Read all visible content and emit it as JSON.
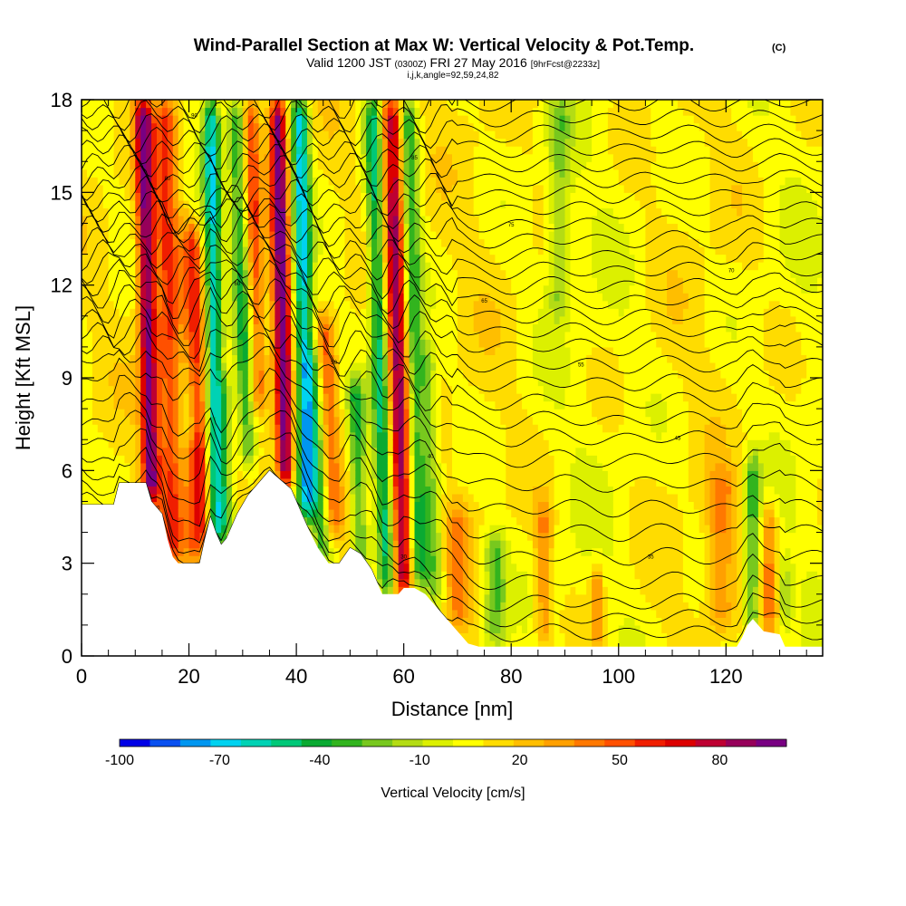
{
  "chart_data": {
    "type": "heatmap",
    "title": "Wind-Parallel Section at Max W: Vertical Velocity & Pot.Temp.",
    "title_mark": "(C)",
    "subtitle_prefix": "Valid 1200 JST",
    "subtitle_small1": "(0300Z)",
    "subtitle_main": "FRI 27 May 2016",
    "subtitle_small2": "[9hrFcst@2233z]",
    "subtitle_line2": "i,j,k,angle=92,59,24,82",
    "xlabel": "Distance [nm]",
    "ylabel": "Height [Kft MSL]",
    "xlim": [
      0,
      138
    ],
    "ylim": [
      0,
      18
    ],
    "xticks": [
      "0",
      "20",
      "40",
      "60",
      "80",
      "100",
      "120"
    ],
    "yticks": [
      "0",
      "3",
      "6",
      "9",
      "12",
      "15",
      "18"
    ],
    "colorbar": {
      "label": "Vertical Velocity [cm/s]",
      "tick_labels": [
        "-100",
        "-70",
        "-40",
        "-10",
        "20",
        "50",
        "80"
      ],
      "tick_values": [
        -100,
        -70,
        -40,
        -10,
        20,
        50,
        80
      ],
      "range": [
        -100,
        100
      ],
      "colors": [
        "#0000e6",
        "#0a50f0",
        "#0096f0",
        "#00d2f0",
        "#00d2b4",
        "#00c878",
        "#0aaa32",
        "#32b41e",
        "#78c81e",
        "#b4dc14",
        "#dcf000",
        "#ffff00",
        "#ffdc00",
        "#ffbe00",
        "#ffa000",
        "#ff7800",
        "#ff5000",
        "#f01e00",
        "#dc0000",
        "#be0032",
        "#96005a",
        "#780082"
      ]
    },
    "terrain": [
      [
        0,
        4.9
      ],
      [
        6,
        4.9
      ],
      [
        7,
        5.6
      ],
      [
        12,
        5.6
      ],
      [
        13,
        5.0
      ],
      [
        15,
        4.6
      ],
      [
        16,
        3.8
      ],
      [
        17,
        3.2
      ],
      [
        18,
        3.0
      ],
      [
        22,
        3.0
      ],
      [
        23,
        3.8
      ],
      [
        24,
        4.5
      ],
      [
        25,
        4.0
      ],
      [
        26,
        3.6
      ],
      [
        27,
        3.8
      ],
      [
        29,
        4.6
      ],
      [
        31,
        5.2
      ],
      [
        33,
        5.6
      ],
      [
        35,
        6.0
      ],
      [
        37,
        5.7
      ],
      [
        39,
        5.4
      ],
      [
        40,
        5.0
      ],
      [
        41,
        4.6
      ],
      [
        42,
        4.2
      ],
      [
        44,
        3.5
      ],
      [
        46,
        3.0
      ],
      [
        48,
        3.0
      ],
      [
        50,
        3.5
      ],
      [
        52,
        3.3
      ],
      [
        54,
        2.8
      ],
      [
        55,
        2.4
      ],
      [
        56,
        2.0
      ],
      [
        59,
        2.0
      ],
      [
        60,
        2.2
      ],
      [
        62,
        2.2
      ],
      [
        64,
        2.0
      ],
      [
        66,
        1.6
      ],
      [
        68,
        1.2
      ],
      [
        70,
        0.8
      ],
      [
        72,
        0.4
      ],
      [
        74,
        0.3
      ],
      [
        122,
        0.3
      ],
      [
        123,
        0.6
      ],
      [
        124,
        1.0
      ],
      [
        125,
        1.2
      ],
      [
        127,
        0.8
      ],
      [
        130,
        0.7
      ],
      [
        131,
        0.3
      ],
      [
        138,
        0.3
      ]
    ],
    "features": [
      {
        "x": 13,
        "z0": 5.0,
        "z1": 18,
        "w": 1.6,
        "amp": 85,
        "lean": -0.12
      },
      {
        "x": 17,
        "z0": 3.2,
        "z1": 18,
        "w": 2.2,
        "amp": 45,
        "lean": -0.1
      },
      {
        "x": 21,
        "z0": 3.0,
        "z1": 7.0,
        "w": 1.8,
        "amp": 30,
        "lean": 0.0
      },
      {
        "x": 23,
        "z0": 3.5,
        "z1": 14,
        "w": 1.8,
        "amp": 45,
        "lean": -0.25
      },
      {
        "x": 25,
        "z0": 3.6,
        "z1": 18,
        "w": 1.6,
        "amp": -70,
        "lean": -0.06
      },
      {
        "x": 27,
        "z0": 4.0,
        "z1": 9,
        "w": 1.5,
        "amp": -35,
        "lean": -0.1
      },
      {
        "x": 31,
        "z0": 6.0,
        "z1": 18,
        "w": 1.6,
        "amp": -45,
        "lean": -0.2
      },
      {
        "x": 33,
        "z0": 8.0,
        "z1": 18,
        "w": 1.5,
        "amp": 40,
        "lean": -0.15
      },
      {
        "x": 38,
        "z0": 5.5,
        "z1": 18,
        "w": 1.6,
        "amp": 90,
        "lean": -0.12
      },
      {
        "x": 42,
        "z0": 4.5,
        "z1": 18,
        "w": 1.7,
        "amp": -75,
        "lean": -0.1
      },
      {
        "x": 45,
        "z0": 3.0,
        "z1": 10,
        "w": 1.8,
        "amp": -40,
        "lean": -0.3
      },
      {
        "x": 47,
        "z0": 4.0,
        "z1": 11,
        "w": 1.7,
        "amp": 35,
        "lean": -0.25
      },
      {
        "x": 52,
        "z0": 2.5,
        "z1": 9,
        "w": 1.6,
        "amp": -45,
        "lean": -0.15
      },
      {
        "x": 57,
        "z0": 2.0,
        "z1": 18,
        "w": 1.7,
        "amp": -60,
        "lean": -0.18
      },
      {
        "x": 60,
        "z0": 2.0,
        "z1": 18,
        "w": 2.0,
        "amp": 80,
        "lean": -0.14
      },
      {
        "x": 63,
        "z0": 2.2,
        "z1": 18,
        "w": 1.8,
        "amp": -50,
        "lean": -0.15
      },
      {
        "x": 66,
        "z0": 1.6,
        "z1": 10,
        "w": 1.6,
        "amp": -30,
        "lean": -0.2
      },
      {
        "x": 70,
        "z0": 0.8,
        "z1": 5,
        "w": 2.0,
        "amp": 25,
        "lean": 0.0
      },
      {
        "x": 77,
        "z0": 0.3,
        "z1": 4,
        "w": 2.2,
        "amp": -38,
        "lean": 0.0
      },
      {
        "x": 86,
        "z0": 0.3,
        "z1": 5,
        "w": 1.5,
        "amp": 30,
        "lean": 0.0
      },
      {
        "x": 89,
        "z0": 11,
        "z1": 18,
        "w": 2.0,
        "amp": -25,
        "lean": 0.0
      },
      {
        "x": 96,
        "z0": 0.3,
        "z1": 3,
        "w": 1.2,
        "amp": 30,
        "lean": 0.0
      },
      {
        "x": 119,
        "z0": 1.0,
        "z1": 6,
        "w": 2.5,
        "amp": 30,
        "lean": 0.0
      },
      {
        "x": 125,
        "z0": 0.6,
        "z1": 6.5,
        "w": 1.5,
        "amp": -40,
        "lean": 0.0
      },
      {
        "x": 128,
        "z0": 0.8,
        "z1": 5,
        "w": 1.5,
        "amp": 30,
        "lean": 0.0
      },
      {
        "x": 131,
        "z0": 1.0,
        "z1": 3,
        "w": 1.2,
        "amp": -25,
        "lean": 0.0
      }
    ],
    "theta_levels": [
      [
        0.5,
        "20"
      ],
      [
        1.0,
        ""
      ],
      [
        1.5,
        "30"
      ],
      [
        2.2,
        ""
      ],
      [
        3.0,
        "35"
      ],
      [
        3.8,
        ""
      ],
      [
        4.6,
        ""
      ],
      [
        5.4,
        "40"
      ],
      [
        6.2,
        ""
      ],
      [
        6.9,
        "45"
      ],
      [
        7.5,
        ""
      ],
      [
        8.1,
        "50"
      ],
      [
        8.7,
        ""
      ],
      [
        9.3,
        "55"
      ],
      [
        9.9,
        ""
      ],
      [
        10.4,
        "60"
      ],
      [
        10.9,
        ""
      ],
      [
        11.4,
        "65"
      ],
      [
        11.9,
        ""
      ],
      [
        12.4,
        "70"
      ],
      [
        12.9,
        ""
      ],
      [
        13.4,
        ""
      ],
      [
        13.9,
        "75"
      ],
      [
        14.4,
        ""
      ],
      [
        14.9,
        "80"
      ],
      [
        15.4,
        ""
      ],
      [
        15.9,
        "85"
      ],
      [
        16.4,
        ""
      ],
      [
        16.9,
        ""
      ],
      [
        17.4,
        "90"
      ],
      [
        17.9,
        ""
      ]
    ]
  }
}
